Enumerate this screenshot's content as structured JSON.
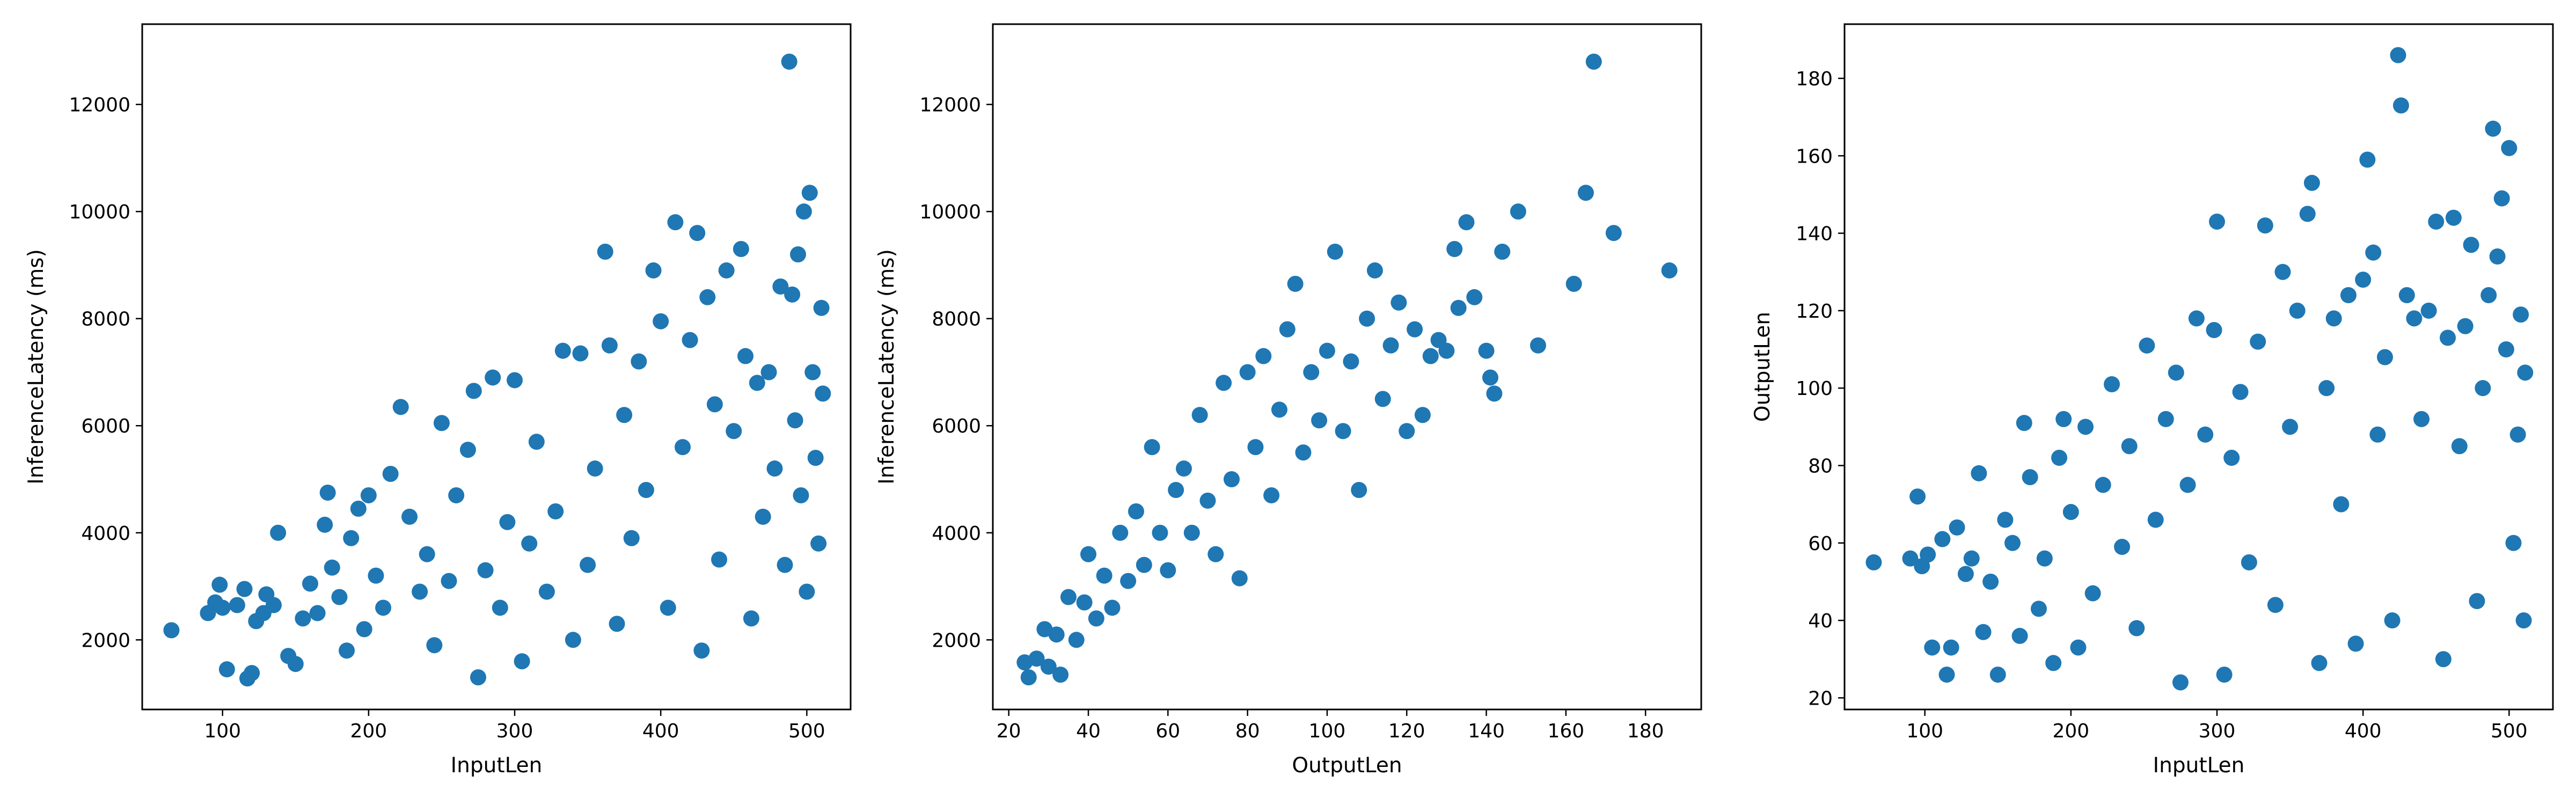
{
  "chart_data": [
    {
      "type": "scatter",
      "xlabel": "InputLen",
      "ylabel": "InferenceLatency (ms)",
      "xlim": [
        45,
        530
      ],
      "ylim": [
        700,
        13500
      ],
      "xticks": [
        100,
        200,
        300,
        400,
        500
      ],
      "yticks": [
        2000,
        4000,
        6000,
        8000,
        10000,
        12000
      ],
      "color": "#1f77b4",
      "grid": false,
      "points": [
        {
          "x": 65,
          "y": 2180
        },
        {
          "x": 90,
          "y": 2500
        },
        {
          "x": 95,
          "y": 2700
        },
        {
          "x": 98,
          "y": 3030
        },
        {
          "x": 100,
          "y": 2600
        },
        {
          "x": 103,
          "y": 1450
        },
        {
          "x": 110,
          "y": 2650
        },
        {
          "x": 115,
          "y": 2950
        },
        {
          "x": 117,
          "y": 1280
        },
        {
          "x": 120,
          "y": 1380
        },
        {
          "x": 123,
          "y": 2350
        },
        {
          "x": 128,
          "y": 2500
        },
        {
          "x": 130,
          "y": 2850
        },
        {
          "x": 135,
          "y": 2650
        },
        {
          "x": 138,
          "y": 4000
        },
        {
          "x": 145,
          "y": 1700
        },
        {
          "x": 150,
          "y": 1550
        },
        {
          "x": 155,
          "y": 2400
        },
        {
          "x": 160,
          "y": 3050
        },
        {
          "x": 165,
          "y": 2500
        },
        {
          "x": 170,
          "y": 4150
        },
        {
          "x": 172,
          "y": 4750
        },
        {
          "x": 175,
          "y": 3350
        },
        {
          "x": 180,
          "y": 2800
        },
        {
          "x": 185,
          "y": 1800
        },
        {
          "x": 188,
          "y": 3900
        },
        {
          "x": 193,
          "y": 4450
        },
        {
          "x": 197,
          "y": 2200
        },
        {
          "x": 200,
          "y": 4700
        },
        {
          "x": 205,
          "y": 3200
        },
        {
          "x": 210,
          "y": 2600
        },
        {
          "x": 215,
          "y": 5100
        },
        {
          "x": 222,
          "y": 6350
        },
        {
          "x": 228,
          "y": 4300
        },
        {
          "x": 235,
          "y": 2900
        },
        {
          "x": 240,
          "y": 3600
        },
        {
          "x": 245,
          "y": 1900
        },
        {
          "x": 250,
          "y": 6050
        },
        {
          "x": 255,
          "y": 3100
        },
        {
          "x": 260,
          "y": 4700
        },
        {
          "x": 268,
          "y": 5550
        },
        {
          "x": 272,
          "y": 6650
        },
        {
          "x": 275,
          "y": 1300
        },
        {
          "x": 280,
          "y": 3300
        },
        {
          "x": 285,
          "y": 6900
        },
        {
          "x": 290,
          "y": 2600
        },
        {
          "x": 295,
          "y": 4200
        },
        {
          "x": 300,
          "y": 6850
        },
        {
          "x": 305,
          "y": 1600
        },
        {
          "x": 310,
          "y": 3800
        },
        {
          "x": 315,
          "y": 5700
        },
        {
          "x": 322,
          "y": 2900
        },
        {
          "x": 328,
          "y": 4400
        },
        {
          "x": 333,
          "y": 7400
        },
        {
          "x": 340,
          "y": 2000
        },
        {
          "x": 345,
          "y": 7350
        },
        {
          "x": 350,
          "y": 3400
        },
        {
          "x": 355,
          "y": 5200
        },
        {
          "x": 362,
          "y": 9250
        },
        {
          "x": 365,
          "y": 7500
        },
        {
          "x": 370,
          "y": 2300
        },
        {
          "x": 375,
          "y": 6200
        },
        {
          "x": 380,
          "y": 3900
        },
        {
          "x": 385,
          "y": 7200
        },
        {
          "x": 390,
          "y": 4800
        },
        {
          "x": 395,
          "y": 8900
        },
        {
          "x": 400,
          "y": 7950
        },
        {
          "x": 405,
          "y": 2600
        },
        {
          "x": 410,
          "y": 9800
        },
        {
          "x": 415,
          "y": 5600
        },
        {
          "x": 420,
          "y": 7600
        },
        {
          "x": 425,
          "y": 9600
        },
        {
          "x": 428,
          "y": 1800
        },
        {
          "x": 432,
          "y": 8400
        },
        {
          "x": 437,
          "y": 6400
        },
        {
          "x": 440,
          "y": 3500
        },
        {
          "x": 445,
          "y": 8900
        },
        {
          "x": 450,
          "y": 5900
        },
        {
          "x": 455,
          "y": 9300
        },
        {
          "x": 458,
          "y": 7300
        },
        {
          "x": 462,
          "y": 2400
        },
        {
          "x": 466,
          "y": 6800
        },
        {
          "x": 470,
          "y": 4300
        },
        {
          "x": 474,
          "y": 7000
        },
        {
          "x": 478,
          "y": 5200
        },
        {
          "x": 482,
          "y": 8600
        },
        {
          "x": 485,
          "y": 3400
        },
        {
          "x": 488,
          "y": 12800
        },
        {
          "x": 490,
          "y": 8450
        },
        {
          "x": 492,
          "y": 6100
        },
        {
          "x": 494,
          "y": 9200
        },
        {
          "x": 496,
          "y": 4700
        },
        {
          "x": 498,
          "y": 10000
        },
        {
          "x": 500,
          "y": 2900
        },
        {
          "x": 502,
          "y": 10350
        },
        {
          "x": 504,
          "y": 7000
        },
        {
          "x": 506,
          "y": 5400
        },
        {
          "x": 508,
          "y": 3800
        },
        {
          "x": 510,
          "y": 8200
        },
        {
          "x": 511,
          "y": 6600
        }
      ]
    },
    {
      "type": "scatter",
      "xlabel": "OutputLen",
      "ylabel": "InferenceLatency (ms)",
      "xlim": [
        16,
        194
      ],
      "ylim": [
        700,
        13500
      ],
      "xticks": [
        20,
        40,
        60,
        80,
        100,
        120,
        140,
        160,
        180
      ],
      "yticks": [
        2000,
        4000,
        6000,
        8000,
        10000,
        12000
      ],
      "color": "#1f77b4",
      "grid": false,
      "points": [
        {
          "x": 24,
          "y": 1580
        },
        {
          "x": 25,
          "y": 1300
        },
        {
          "x": 27,
          "y": 1650
        },
        {
          "x": 29,
          "y": 2200
        },
        {
          "x": 30,
          "y": 1500
        },
        {
          "x": 32,
          "y": 2100
        },
        {
          "x": 33,
          "y": 1350
        },
        {
          "x": 35,
          "y": 2800
        },
        {
          "x": 37,
          "y": 2000
        },
        {
          "x": 39,
          "y": 2700
        },
        {
          "x": 40,
          "y": 3600
        },
        {
          "x": 42,
          "y": 2400
        },
        {
          "x": 44,
          "y": 3200
        },
        {
          "x": 46,
          "y": 2600
        },
        {
          "x": 48,
          "y": 4000
        },
        {
          "x": 50,
          "y": 3100
        },
        {
          "x": 52,
          "y": 4400
        },
        {
          "x": 54,
          "y": 3400
        },
        {
          "x": 56,
          "y": 5600
        },
        {
          "x": 58,
          "y": 4000
        },
        {
          "x": 60,
          "y": 3300
        },
        {
          "x": 62,
          "y": 4800
        },
        {
          "x": 64,
          "y": 5200
        },
        {
          "x": 66,
          "y": 4000
        },
        {
          "x": 68,
          "y": 6200
        },
        {
          "x": 70,
          "y": 4600
        },
        {
          "x": 72,
          "y": 3600
        },
        {
          "x": 74,
          "y": 6800
        },
        {
          "x": 76,
          "y": 5000
        },
        {
          "x": 78,
          "y": 3150
        },
        {
          "x": 80,
          "y": 7000
        },
        {
          "x": 82,
          "y": 5600
        },
        {
          "x": 84,
          "y": 7300
        },
        {
          "x": 86,
          "y": 4700
        },
        {
          "x": 88,
          "y": 6300
        },
        {
          "x": 90,
          "y": 7800
        },
        {
          "x": 92,
          "y": 8650
        },
        {
          "x": 94,
          "y": 5500
        },
        {
          "x": 96,
          "y": 7000
        },
        {
          "x": 98,
          "y": 6100
        },
        {
          "x": 100,
          "y": 7400
        },
        {
          "x": 102,
          "y": 9250
        },
        {
          "x": 104,
          "y": 5900
        },
        {
          "x": 106,
          "y": 7200
        },
        {
          "x": 108,
          "y": 4800
        },
        {
          "x": 110,
          "y": 8000
        },
        {
          "x": 112,
          "y": 8900
        },
        {
          "x": 114,
          "y": 6500
        },
        {
          "x": 116,
          "y": 7500
        },
        {
          "x": 118,
          "y": 8300
        },
        {
          "x": 120,
          "y": 5900
        },
        {
          "x": 122,
          "y": 7800
        },
        {
          "x": 124,
          "y": 6200
        },
        {
          "x": 126,
          "y": 7300
        },
        {
          "x": 128,
          "y": 7600
        },
        {
          "x": 130,
          "y": 7400
        },
        {
          "x": 132,
          "y": 9300
        },
        {
          "x": 133,
          "y": 8200
        },
        {
          "x": 135,
          "y": 9800
        },
        {
          "x": 137,
          "y": 8400
        },
        {
          "x": 140,
          "y": 7400
        },
        {
          "x": 141,
          "y": 6900
        },
        {
          "x": 142,
          "y": 6600
        },
        {
          "x": 144,
          "y": 9250
        },
        {
          "x": 148,
          "y": 10000
        },
        {
          "x": 153,
          "y": 7500
        },
        {
          "x": 162,
          "y": 8650
        },
        {
          "x": 165,
          "y": 10350
        },
        {
          "x": 167,
          "y": 12800
        },
        {
          "x": 172,
          "y": 9600
        },
        {
          "x": 186,
          "y": 8900
        }
      ]
    },
    {
      "type": "scatter",
      "xlabel": "InputLen",
      "ylabel": "OutputLen",
      "xlim": [
        45,
        530
      ],
      "ylim": [
        17,
        194
      ],
      "xticks": [
        100,
        200,
        300,
        400,
        500
      ],
      "yticks": [
        20,
        40,
        60,
        80,
        100,
        120,
        140,
        160,
        180
      ],
      "color": "#1f77b4",
      "grid": false,
      "points": [
        {
          "x": 65,
          "y": 55
        },
        {
          "x": 90,
          "y": 56
        },
        {
          "x": 95,
          "y": 72
        },
        {
          "x": 98,
          "y": 54
        },
        {
          "x": 102,
          "y": 57
        },
        {
          "x": 105,
          "y": 33
        },
        {
          "x": 112,
          "y": 61
        },
        {
          "x": 115,
          "y": 26
        },
        {
          "x": 118,
          "y": 33
        },
        {
          "x": 122,
          "y": 64
        },
        {
          "x": 128,
          "y": 52
        },
        {
          "x": 132,
          "y": 56
        },
        {
          "x": 137,
          "y": 78
        },
        {
          "x": 140,
          "y": 37
        },
        {
          "x": 145,
          "y": 50
        },
        {
          "x": 150,
          "y": 26
        },
        {
          "x": 155,
          "y": 66
        },
        {
          "x": 160,
          "y": 60
        },
        {
          "x": 165,
          "y": 36
        },
        {
          "x": 168,
          "y": 91
        },
        {
          "x": 172,
          "y": 77
        },
        {
          "x": 178,
          "y": 43
        },
        {
          "x": 182,
          "y": 56
        },
        {
          "x": 188,
          "y": 29
        },
        {
          "x": 192,
          "y": 82
        },
        {
          "x": 195,
          "y": 92
        },
        {
          "x": 200,
          "y": 68
        },
        {
          "x": 205,
          "y": 33
        },
        {
          "x": 210,
          "y": 90
        },
        {
          "x": 215,
          "y": 47
        },
        {
          "x": 222,
          "y": 75
        },
        {
          "x": 228,
          "y": 101
        },
        {
          "x": 235,
          "y": 59
        },
        {
          "x": 240,
          "y": 85
        },
        {
          "x": 245,
          "y": 38
        },
        {
          "x": 252,
          "y": 111
        },
        {
          "x": 258,
          "y": 66
        },
        {
          "x": 265,
          "y": 92
        },
        {
          "x": 272,
          "y": 104
        },
        {
          "x": 275,
          "y": 24
        },
        {
          "x": 280,
          "y": 75
        },
        {
          "x": 286,
          "y": 118
        },
        {
          "x": 292,
          "y": 88
        },
        {
          "x": 298,
          "y": 115
        },
        {
          "x": 300,
          "y": 143
        },
        {
          "x": 305,
          "y": 26
        },
        {
          "x": 310,
          "y": 82
        },
        {
          "x": 316,
          "y": 99
        },
        {
          "x": 322,
          "y": 55
        },
        {
          "x": 328,
          "y": 112
        },
        {
          "x": 333,
          "y": 142
        },
        {
          "x": 340,
          "y": 44
        },
        {
          "x": 345,
          "y": 130
        },
        {
          "x": 350,
          "y": 90
        },
        {
          "x": 355,
          "y": 120
        },
        {
          "x": 362,
          "y": 145
        },
        {
          "x": 365,
          "y": 153
        },
        {
          "x": 370,
          "y": 29
        },
        {
          "x": 375,
          "y": 100
        },
        {
          "x": 380,
          "y": 118
        },
        {
          "x": 385,
          "y": 70
        },
        {
          "x": 390,
          "y": 124
        },
        {
          "x": 395,
          "y": 34
        },
        {
          "x": 400,
          "y": 128
        },
        {
          "x": 403,
          "y": 159
        },
        {
          "x": 407,
          "y": 135
        },
        {
          "x": 410,
          "y": 88
        },
        {
          "x": 415,
          "y": 108
        },
        {
          "x": 420,
          "y": 40
        },
        {
          "x": 424,
          "y": 186
        },
        {
          "x": 426,
          "y": 173
        },
        {
          "x": 430,
          "y": 124
        },
        {
          "x": 435,
          "y": 118
        },
        {
          "x": 440,
          "y": 92
        },
        {
          "x": 445,
          "y": 120
        },
        {
          "x": 450,
          "y": 143
        },
        {
          "x": 455,
          "y": 30
        },
        {
          "x": 458,
          "y": 113
        },
        {
          "x": 462,
          "y": 144
        },
        {
          "x": 466,
          "y": 85
        },
        {
          "x": 470,
          "y": 116
        },
        {
          "x": 474,
          "y": 137
        },
        {
          "x": 478,
          "y": 45
        },
        {
          "x": 482,
          "y": 100
        },
        {
          "x": 486,
          "y": 124
        },
        {
          "x": 489,
          "y": 167
        },
        {
          "x": 492,
          "y": 134
        },
        {
          "x": 495,
          "y": 149
        },
        {
          "x": 498,
          "y": 110
        },
        {
          "x": 500,
          "y": 162
        },
        {
          "x": 503,
          "y": 60
        },
        {
          "x": 506,
          "y": 88
        },
        {
          "x": 508,
          "y": 119
        },
        {
          "x": 510,
          "y": 40
        },
        {
          "x": 511,
          "y": 104
        }
      ]
    }
  ]
}
